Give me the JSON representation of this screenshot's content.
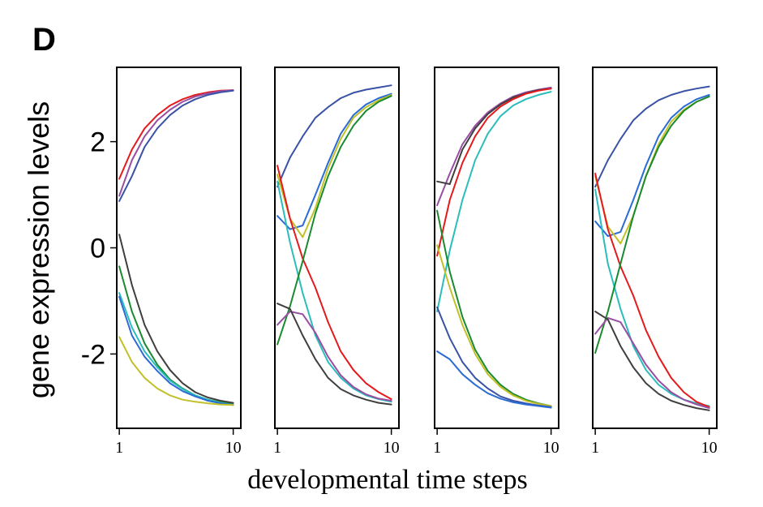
{
  "figure": {
    "panel_label": "D",
    "xlabel": "developmental time steps",
    "ylabel": "gene expression levels"
  },
  "chart_data": [
    {
      "type": "line",
      "x": [
        1,
        2,
        3,
        4,
        5,
        6,
        7,
        8,
        9,
        10
      ],
      "xticks": [
        1,
        10
      ],
      "yticks": [
        2,
        0,
        -2
      ],
      "xlim": [
        0.8,
        10.6
      ],
      "ylim": [
        -3.4,
        3.4
      ],
      "series": [
        {
          "color": "#e41a1c",
          "values": [
            1.3,
            1.85,
            2.25,
            2.5,
            2.68,
            2.8,
            2.88,
            2.93,
            2.96,
            2.97
          ]
        },
        {
          "color": "#984ea3",
          "values": [
            0.98,
            1.65,
            2.1,
            2.4,
            2.6,
            2.75,
            2.85,
            2.91,
            2.95,
            2.97
          ]
        },
        {
          "color": "#3a52a5",
          "values": [
            0.88,
            1.35,
            1.9,
            2.25,
            2.5,
            2.68,
            2.8,
            2.88,
            2.93,
            2.96
          ]
        },
        {
          "color": "#3f3f3f",
          "values": [
            0.25,
            -0.7,
            -1.45,
            -1.95,
            -2.3,
            -2.55,
            -2.72,
            -2.82,
            -2.88,
            -2.92
          ]
        },
        {
          "color": "#1a8a2e",
          "values": [
            -0.35,
            -1.2,
            -1.8,
            -2.2,
            -2.48,
            -2.65,
            -2.78,
            -2.86,
            -2.91,
            -2.95
          ]
        },
        {
          "color": "#2bbcbc",
          "values": [
            -0.85,
            -1.5,
            -1.95,
            -2.25,
            -2.5,
            -2.66,
            -2.78,
            -2.86,
            -2.92,
            -2.96
          ]
        },
        {
          "color": "#2a6bd4",
          "values": [
            -0.92,
            -1.65,
            -2.05,
            -2.32,
            -2.55,
            -2.7,
            -2.8,
            -2.88,
            -2.93,
            -2.96
          ]
        },
        {
          "color": "#c2c028",
          "values": [
            -1.68,
            -2.15,
            -2.45,
            -2.65,
            -2.78,
            -2.86,
            -2.9,
            -2.93,
            -2.95,
            -2.96
          ]
        }
      ]
    },
    {
      "type": "line",
      "x": [
        1,
        2,
        3,
        4,
        5,
        6,
        7,
        8,
        9,
        10
      ],
      "xticks": [
        1,
        10
      ],
      "yticks": [],
      "xlim": [
        0.8,
        10.6
      ],
      "ylim": [
        -3.4,
        3.4
      ],
      "series": [
        {
          "color": "#3a52a5",
          "values": [
            1.15,
            1.7,
            2.1,
            2.45,
            2.65,
            2.82,
            2.92,
            2.98,
            3.02,
            3.06
          ]
        },
        {
          "color": "#2a6bd4",
          "values": [
            0.6,
            0.35,
            0.42,
            1.0,
            1.6,
            2.15,
            2.5,
            2.7,
            2.82,
            2.9
          ]
        },
        {
          "color": "#c2c028",
          "values": [
            1.38,
            0.55,
            0.2,
            0.75,
            1.5,
            2.05,
            2.45,
            2.65,
            2.78,
            2.88
          ]
        },
        {
          "color": "#2bbcbc",
          "values": [
            1.25,
            0.1,
            -0.85,
            -1.65,
            -2.15,
            -2.45,
            -2.65,
            -2.78,
            -2.85,
            -2.9
          ]
        },
        {
          "color": "#e41a1c",
          "values": [
            1.55,
            0.55,
            -0.2,
            -0.75,
            -1.4,
            -1.95,
            -2.3,
            -2.55,
            -2.72,
            -2.85
          ]
        },
        {
          "color": "#1a8a2e",
          "values": [
            -1.82,
            -1.1,
            -0.25,
            0.65,
            1.35,
            1.9,
            2.3,
            2.58,
            2.75,
            2.86
          ]
        },
        {
          "color": "#984ea3",
          "values": [
            -1.45,
            -1.2,
            -1.25,
            -1.6,
            -2.05,
            -2.4,
            -2.62,
            -2.76,
            -2.84,
            -2.88
          ]
        },
        {
          "color": "#3f3f3f",
          "values": [
            -1.05,
            -1.15,
            -1.65,
            -2.1,
            -2.45,
            -2.66,
            -2.78,
            -2.86,
            -2.92,
            -2.95
          ]
        }
      ]
    },
    {
      "type": "line",
      "x": [
        1,
        2,
        3,
        4,
        5,
        6,
        7,
        8,
        9,
        10
      ],
      "xticks": [
        1,
        10
      ],
      "yticks": [],
      "xlim": [
        0.8,
        10.6
      ],
      "ylim": [
        -3.4,
        3.4
      ],
      "series": [
        {
          "color": "#984ea3",
          "values": [
            0.8,
            1.4,
            1.95,
            2.3,
            2.55,
            2.72,
            2.85,
            2.93,
            2.98,
            3.02
          ]
        },
        {
          "color": "#3f3f3f",
          "values": [
            1.25,
            1.2,
            1.85,
            2.25,
            2.52,
            2.7,
            2.83,
            2.91,
            2.97,
            3.0
          ]
        },
        {
          "color": "#e41a1c",
          "values": [
            -0.15,
            0.9,
            1.6,
            2.1,
            2.45,
            2.66,
            2.8,
            2.9,
            2.96,
            3.0
          ]
        },
        {
          "color": "#2bbcbc",
          "values": [
            -1.2,
            -0.05,
            0.9,
            1.65,
            2.15,
            2.48,
            2.68,
            2.8,
            2.88,
            2.94
          ]
        },
        {
          "color": "#1a8a2e",
          "values": [
            0.7,
            -0.45,
            -1.3,
            -1.92,
            -2.32,
            -2.58,
            -2.75,
            -2.86,
            -2.93,
            -2.98
          ]
        },
        {
          "color": "#c2c028",
          "values": [
            0.05,
            -0.75,
            -1.45,
            -2.0,
            -2.38,
            -2.62,
            -2.78,
            -2.88,
            -2.94,
            -2.98
          ]
        },
        {
          "color": "#3a52a5",
          "values": [
            -1.12,
            -1.7,
            -2.15,
            -2.45,
            -2.65,
            -2.8,
            -2.88,
            -2.93,
            -2.97,
            -3.0
          ]
        },
        {
          "color": "#2a6bd4",
          "values": [
            -1.95,
            -2.1,
            -2.38,
            -2.58,
            -2.74,
            -2.84,
            -2.91,
            -2.95,
            -2.98,
            -3.01
          ]
        }
      ]
    },
    {
      "type": "line",
      "x": [
        1,
        2,
        3,
        4,
        5,
        6,
        7,
        8,
        9,
        10
      ],
      "xticks": [
        1,
        10
      ],
      "yticks": [],
      "xlim": [
        0.8,
        10.6
      ],
      "ylim": [
        -3.4,
        3.4
      ],
      "series": [
        {
          "color": "#3a52a5",
          "values": [
            1.15,
            1.65,
            2.05,
            2.4,
            2.62,
            2.78,
            2.88,
            2.95,
            3.0,
            3.04
          ]
        },
        {
          "color": "#2a6bd4",
          "values": [
            0.5,
            0.22,
            0.3,
            0.9,
            1.55,
            2.1,
            2.45,
            2.66,
            2.8,
            2.88
          ]
        },
        {
          "color": "#c2c028",
          "values": [
            1.35,
            0.4,
            0.08,
            0.6,
            1.35,
            1.95,
            2.38,
            2.6,
            2.75,
            2.85
          ]
        },
        {
          "color": "#2bbcbc",
          "values": [
            1.1,
            -0.3,
            -1.15,
            -1.85,
            -2.3,
            -2.58,
            -2.75,
            -2.86,
            -2.93,
            -2.98
          ]
        },
        {
          "color": "#e41a1c",
          "values": [
            1.4,
            0.35,
            -0.35,
            -0.9,
            -1.55,
            -2.05,
            -2.45,
            -2.72,
            -2.9,
            -3.0
          ]
        },
        {
          "color": "#1a8a2e",
          "values": [
            -1.98,
            -1.2,
            -0.3,
            0.6,
            1.35,
            1.9,
            2.3,
            2.58,
            2.75,
            2.85
          ]
        },
        {
          "color": "#984ea3",
          "values": [
            -1.62,
            -1.32,
            -1.4,
            -1.8,
            -2.2,
            -2.5,
            -2.72,
            -2.86,
            -2.95,
            -3.02
          ]
        },
        {
          "color": "#3f3f3f",
          "values": [
            -1.2,
            -1.35,
            -1.85,
            -2.25,
            -2.55,
            -2.75,
            -2.88,
            -2.96,
            -3.02,
            -3.06
          ]
        }
      ]
    }
  ]
}
